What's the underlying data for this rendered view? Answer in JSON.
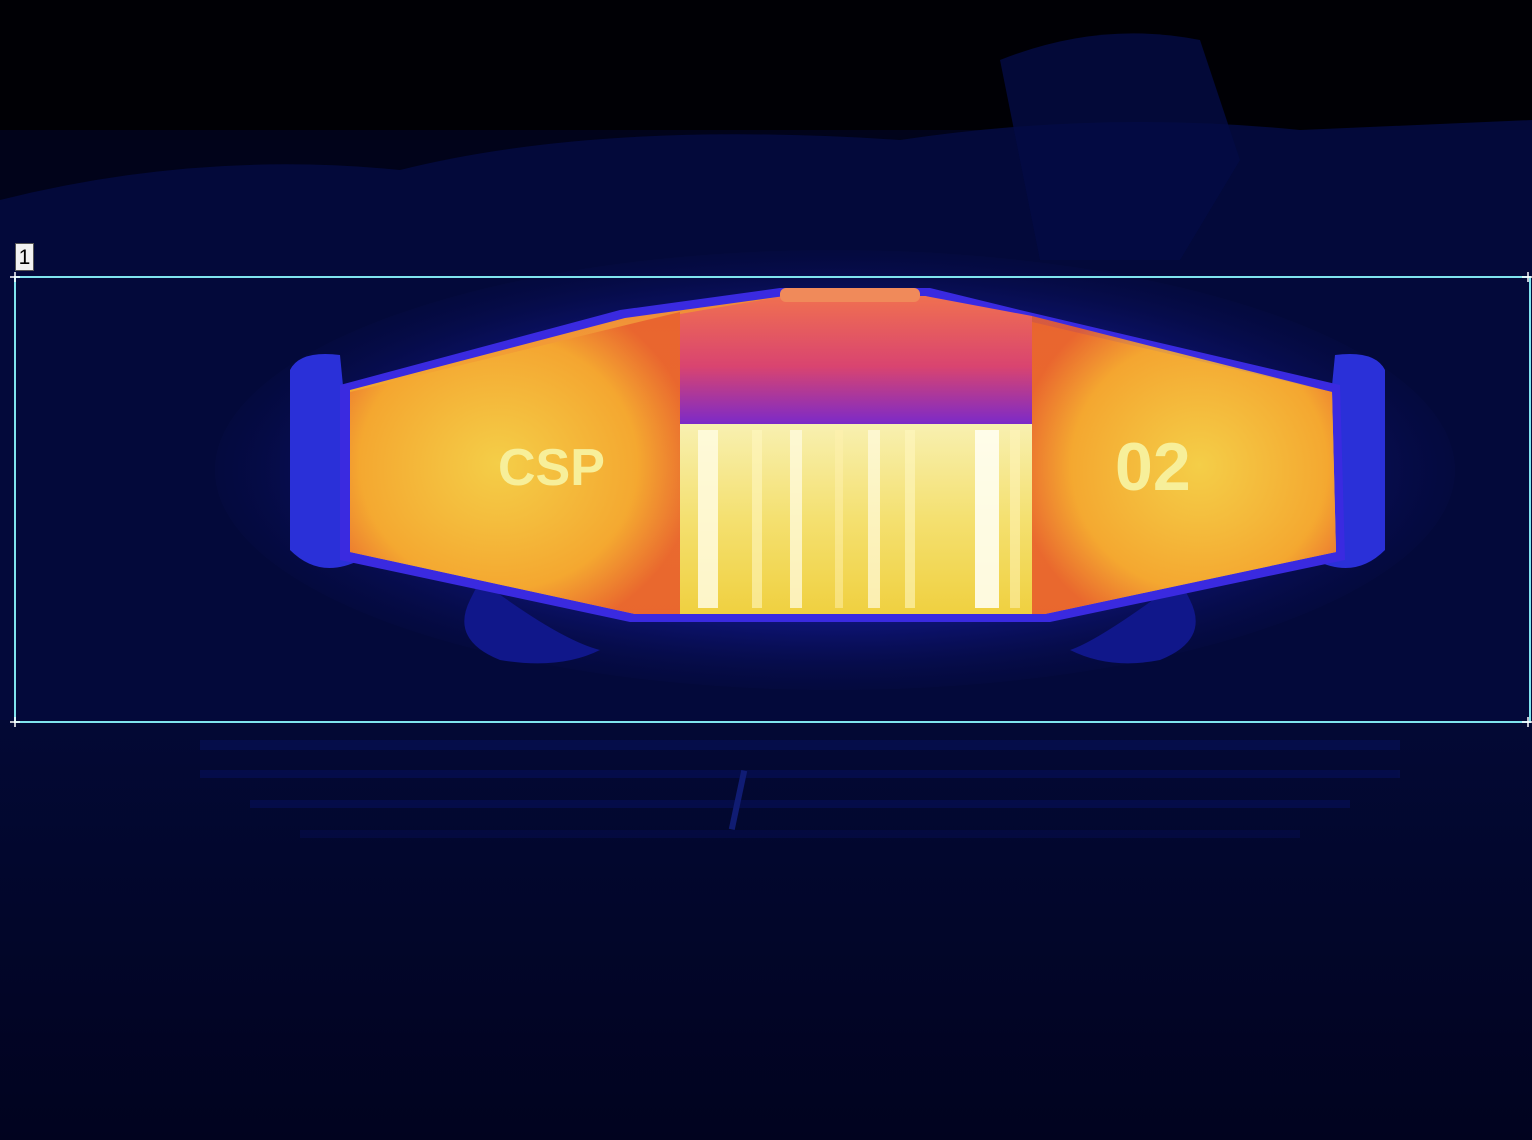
{
  "view": {
    "palette": "ironbow",
    "colors": {
      "background": "#01031f",
      "cold": "#0a0f5e",
      "mid": "#1a22c8",
      "warm": "#d83a6a",
      "hot": "#f6a326",
      "hottest": "#fffbd0",
      "roi_line": "#7fe4ee"
    }
  },
  "roi": {
    "label": "1",
    "shape": "rectangle"
  },
  "object": {
    "left_marking": "CSP",
    "right_marking": "02"
  }
}
